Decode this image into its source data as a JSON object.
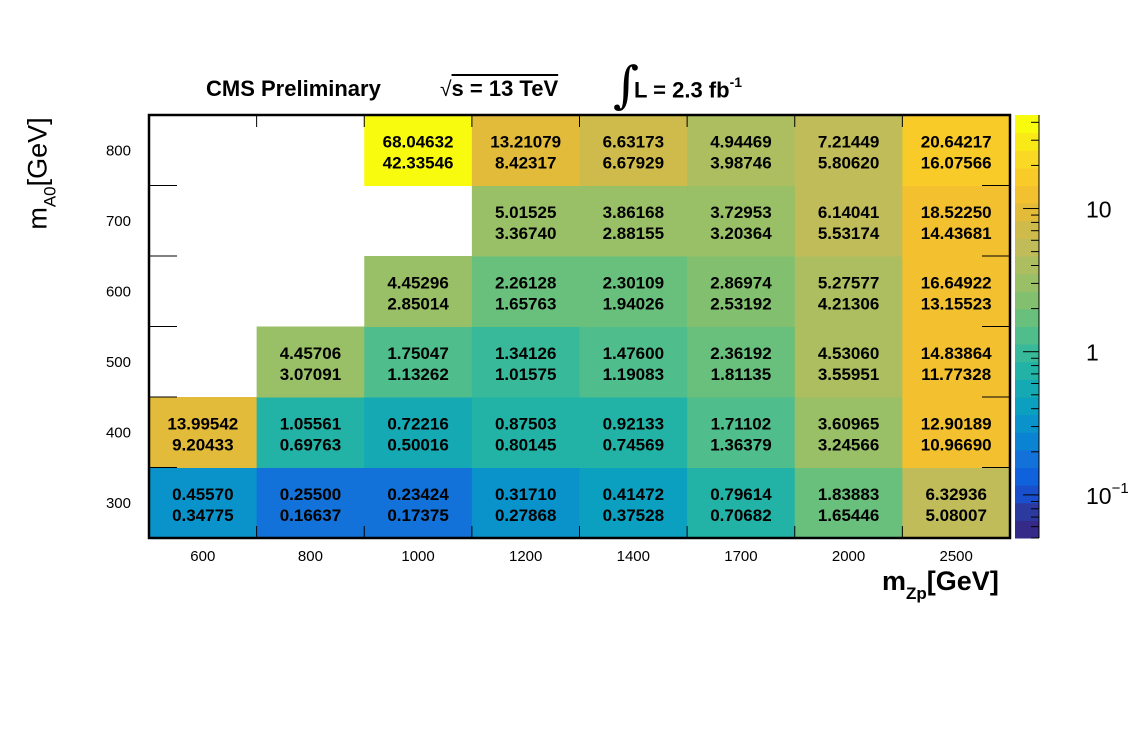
{
  "header": {
    "experiment": "CMS Preliminary",
    "sqrt_s_value": "s = 13 TeV",
    "sqrt_symbol": "√",
    "lumi": "L = 2.3 fb",
    "lumi_exp": "-1"
  },
  "axes": {
    "x_title_main": "m",
    "x_title_sub": "Zp",
    "x_title_unit": "[GeV]",
    "y_title_main": "m",
    "y_title_sub": "A0",
    "y_title_unit": "[GeV]"
  },
  "chart_data": {
    "type": "heatmap",
    "x_categories": [
      "600",
      "800",
      "1000",
      "1200",
      "1400",
      "1700",
      "2000",
      "2500"
    ],
    "y_categories": [
      "300",
      "400",
      "500",
      "600",
      "700",
      "800"
    ],
    "z_scale": "log",
    "z_range": [
      0.05,
      45
    ],
    "colorbar_ticks": [
      {
        "value": 0.1,
        "label": "10",
        "exp": "−1"
      },
      {
        "value": 1,
        "label": "1",
        "exp": ""
      },
      {
        "value": 10,
        "label": "10",
        "exp": ""
      }
    ],
    "colorbar_palette": [
      "#352a87",
      "#2c3a9f",
      "#1a4fcc",
      "#0f61dc",
      "#1272d9",
      "#0a83d2",
      "#0a93cb",
      "#0ba0bf",
      "#15aab3",
      "#22b3a6",
      "#37b99a",
      "#4fbd8c",
      "#69bf7c",
      "#82c070",
      "#99bf67",
      "#acbe5f",
      "#bfbc59",
      "#cfbb4b",
      "#e3bb3a",
      "#f3c02f",
      "#f8cb28",
      "#f9d923",
      "#f9e917",
      "#f9fb0e"
    ],
    "cells": [
      {
        "x": "600",
        "y": "300",
        "top": "0.45570",
        "bottom": "0.34775",
        "z": 0.3478
      },
      {
        "x": "800",
        "y": "300",
        "top": "0.25500",
        "bottom": "0.16637",
        "z": 0.1664
      },
      {
        "x": "1000",
        "y": "300",
        "top": "0.23424",
        "bottom": "0.17375",
        "z": 0.1738
      },
      {
        "x": "1200",
        "y": "300",
        "top": "0.31710",
        "bottom": "0.27868",
        "z": 0.2787
      },
      {
        "x": "1400",
        "y": "300",
        "top": "0.41472",
        "bottom": "0.37528",
        "z": 0.3753
      },
      {
        "x": "1700",
        "y": "300",
        "top": "0.79614",
        "bottom": "0.70682",
        "z": 0.7068
      },
      {
        "x": "2000",
        "y": "300",
        "top": "1.83883",
        "bottom": "1.65446",
        "z": 1.6545
      },
      {
        "x": "2500",
        "y": "300",
        "top": "6.32936",
        "bottom": "5.08007",
        "z": 5.0801
      },
      {
        "x": "600",
        "y": "400",
        "top": "13.99542",
        "bottom": "9.20433",
        "z": 9.2043
      },
      {
        "x": "800",
        "y": "400",
        "top": "1.05561",
        "bottom": "0.69763",
        "z": 0.6976
      },
      {
        "x": "1000",
        "y": "400",
        "top": "0.72216",
        "bottom": "0.50016",
        "z": 0.5002
      },
      {
        "x": "1200",
        "y": "400",
        "top": "0.87503",
        "bottom": "0.80145",
        "z": 0.8015
      },
      {
        "x": "1400",
        "y": "400",
        "top": "0.92133",
        "bottom": "0.74569",
        "z": 0.7457
      },
      {
        "x": "1700",
        "y": "400",
        "top": "1.71102",
        "bottom": "1.36379",
        "z": 1.3638
      },
      {
        "x": "2000",
        "y": "400",
        "top": "3.60965",
        "bottom": "3.24566",
        "z": 3.2457
      },
      {
        "x": "2500",
        "y": "400",
        "top": "12.90189",
        "bottom": "10.96690",
        "z": 10.9669
      },
      {
        "x": "800",
        "y": "500",
        "top": "4.45706",
        "bottom": "3.07091",
        "z": 3.0709
      },
      {
        "x": "1000",
        "y": "500",
        "top": "1.75047",
        "bottom": "1.13262",
        "z": 1.1326
      },
      {
        "x": "1200",
        "y": "500",
        "top": "1.34126",
        "bottom": "1.01575",
        "z": 1.0158
      },
      {
        "x": "1400",
        "y": "500",
        "top": "1.47600",
        "bottom": "1.19083",
        "z": 1.1908
      },
      {
        "x": "1700",
        "y": "500",
        "top": "2.36192",
        "bottom": "1.81135",
        "z": 1.8114
      },
      {
        "x": "2000",
        "y": "500",
        "top": "4.53060",
        "bottom": "3.55951",
        "z": 3.5595
      },
      {
        "x": "2500",
        "y": "500",
        "top": "14.83864",
        "bottom": "11.77328",
        "z": 11.7733
      },
      {
        "x": "1000",
        "y": "600",
        "top": "4.45296",
        "bottom": "2.85014",
        "z": 2.8501
      },
      {
        "x": "1200",
        "y": "600",
        "top": "2.26128",
        "bottom": "1.65763",
        "z": 1.6576
      },
      {
        "x": "1400",
        "y": "600",
        "top": "2.30109",
        "bottom": "1.94026",
        "z": 1.9403
      },
      {
        "x": "1700",
        "y": "600",
        "top": "2.86974",
        "bottom": "2.53192",
        "z": 2.5319
      },
      {
        "x": "2000",
        "y": "600",
        "top": "5.27577",
        "bottom": "4.21306",
        "z": 4.2131
      },
      {
        "x": "2500",
        "y": "600",
        "top": "16.64922",
        "bottom": "13.15523",
        "z": 13.1552
      },
      {
        "x": "1200",
        "y": "700",
        "top": "5.01525",
        "bottom": "3.36740",
        "z": 3.3674
      },
      {
        "x": "1400",
        "y": "700",
        "top": "3.86168",
        "bottom": "2.88155",
        "z": 2.8816
      },
      {
        "x": "1700",
        "y": "700",
        "top": "3.72953",
        "bottom": "3.20364",
        "z": 3.2036
      },
      {
        "x": "2000",
        "y": "700",
        "top": "6.14041",
        "bottom": "5.53174",
        "z": 5.5317
      },
      {
        "x": "2500",
        "y": "700",
        "top": "18.52250",
        "bottom": "14.43681",
        "z": 14.4368
      },
      {
        "x": "1000",
        "y": "800",
        "top": "68.04632",
        "bottom": "42.33546",
        "z": 42.3355
      },
      {
        "x": "1200",
        "y": "800",
        "top": "13.21079",
        "bottom": "8.42317",
        "z": 8.4232
      },
      {
        "x": "1400",
        "y": "800",
        "top": "6.63173",
        "bottom": "6.67929",
        "z": 6.6793
      },
      {
        "x": "1700",
        "y": "800",
        "top": "4.94469",
        "bottom": "3.98746",
        "z": 3.9875
      },
      {
        "x": "2000",
        "y": "800",
        "top": "7.21449",
        "bottom": "5.80620",
        "z": 5.8062
      },
      {
        "x": "2500",
        "y": "800",
        "top": "20.64217",
        "bottom": "16.07566",
        "z": 16.0757
      }
    ]
  }
}
